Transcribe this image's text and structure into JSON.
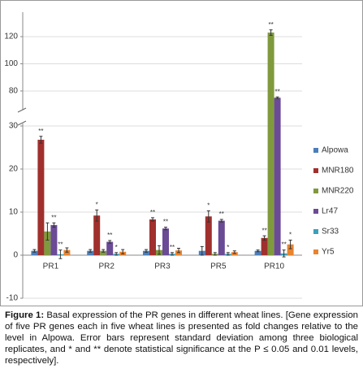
{
  "chart_data": {
    "type": "bar",
    "categories": [
      "PR1",
      "PR2",
      "PR3",
      "PR5",
      "PR10"
    ],
    "series": [
      {
        "name": "Alpowa",
        "color": "#4a7ebb",
        "values": [
          1,
          1,
          1,
          1,
          1
        ],
        "errors": [
          0.3,
          0.3,
          0.3,
          1,
          0.2
        ],
        "significance": [
          null,
          null,
          null,
          null,
          null
        ]
      },
      {
        "name": "MNR180",
        "color": "#a0302d",
        "values": [
          26.8,
          9.2,
          8.3,
          9,
          4
        ],
        "errors": [
          0.8,
          1.3,
          0.4,
          1.3,
          0.5
        ],
        "significance": [
          "**",
          "*",
          "**",
          "*",
          "**"
        ]
      },
      {
        "name": "MNR220",
        "color": "#7f9a3c",
        "values": [
          5.5,
          1,
          1.2,
          0.3,
          123
        ],
        "errors": [
          2,
          0.3,
          1,
          0.3,
          2
        ],
        "significance": [
          null,
          null,
          null,
          null,
          "**"
        ]
      },
      {
        "name": "Lr47",
        "color": "#6b4a96",
        "values": [
          7,
          3.1,
          6.2,
          8,
          75
        ],
        "errors": [
          0.5,
          0.3,
          0.3,
          0.3,
          0.6
        ],
        "significance": [
          "**",
          "**",
          "**",
          "**",
          "**"
        ]
      },
      {
        "name": "Sr33",
        "color": "#3aa0bc",
        "values": [
          0.2,
          0.3,
          0.3,
          0.3,
          0.4
        ],
        "errors": [
          1,
          0.3,
          0.3,
          0.3,
          0.8
        ],
        "significance": [
          "**",
          "*",
          "**",
          "*",
          "**"
        ]
      },
      {
        "name": "Yr5",
        "color": "#e8832e",
        "values": [
          1.2,
          0.8,
          1.1,
          0.7,
          2.5
        ],
        "errors": [
          0.5,
          0.5,
          0.5,
          0.3,
          1
        ],
        "significance": [
          null,
          null,
          null,
          null,
          "*"
        ]
      }
    ],
    "segments": [
      {
        "ylim": [
          -10,
          30
        ],
        "yticks": [
          -10,
          0,
          10,
          20,
          30
        ]
      },
      {
        "ylim": [
          68,
          138
        ],
        "yticks": [
          80,
          100,
          120
        ]
      }
    ],
    "grid": true,
    "legend": "right"
  },
  "caption": {
    "label": "Figure 1:",
    "text": "Basal expression of the PR genes in different wheat lines. [Gene expression of five PR genes each in five wheat lines is presented as fold changes relative to the level in Alpowa. Error bars represent standard deviation among three biological replicates, and * and ** denote statistical significance at the P ≤ 0.05 and 0.01 levels, respectively]."
  }
}
